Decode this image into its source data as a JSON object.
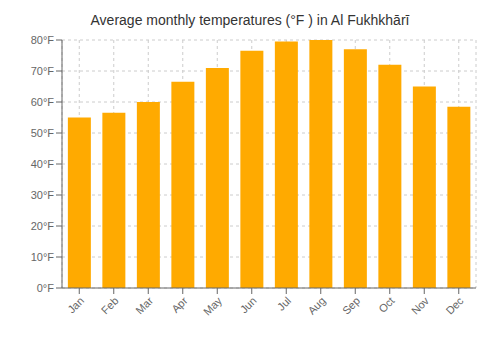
{
  "chart_data": {
    "type": "bar",
    "title": "Average monthly temperatures (°F ) in Al Fukhkhārī",
    "categories": [
      "Jan",
      "Feb",
      "Mar",
      "Apr",
      "May",
      "Jun",
      "Jul",
      "Aug",
      "Sep",
      "Oct",
      "Nov",
      "Dec"
    ],
    "values": [
      55,
      56.5,
      60,
      66.5,
      71,
      76.5,
      79.5,
      80,
      77,
      72,
      65,
      58.5
    ],
    "color": "#FFAA00",
    "ylim": [
      0,
      80
    ],
    "yticks": [
      {
        "value": 0,
        "label": "0°F"
      },
      {
        "value": 10,
        "label": "10°F"
      },
      {
        "value": 20,
        "label": "20°F"
      },
      {
        "value": 30,
        "label": "30°F"
      },
      {
        "value": 40,
        "label": "40°F"
      },
      {
        "value": 50,
        "label": "50°F"
      },
      {
        "value": 60,
        "label": "60°F"
      },
      {
        "value": 70,
        "label": "70°F"
      },
      {
        "value": 80,
        "label": "80°F"
      }
    ],
    "grid": true
  }
}
